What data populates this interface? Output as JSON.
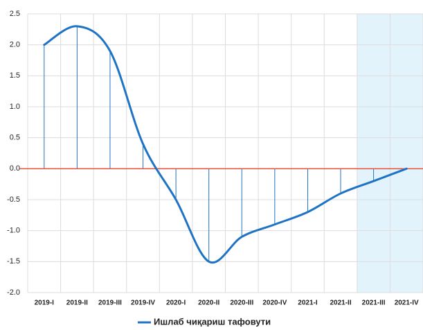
{
  "chart_data": {
    "type": "line",
    "categories": [
      "2019-I",
      "2019-II",
      "2019-III",
      "2019-IV",
      "2020-I",
      "2020-II",
      "2020-III",
      "2020-IV",
      "2021-I",
      "2021-II",
      "2021-III",
      "2021-IV"
    ],
    "series": [
      {
        "name": "Ишлаб чиқариш тафовути",
        "color": "#1f73c4",
        "values": [
          2.0,
          2.3,
          1.9,
          0.4,
          -0.5,
          -1.5,
          -1.1,
          -0.9,
          -0.7,
          -0.4,
          -0.2,
          0.0
        ]
      }
    ],
    "ylim": [
      -2,
      2.5
    ],
    "yticks": [
      {
        "value": -2,
        "label": "-2.0"
      },
      -1.5,
      {
        "value": -1,
        "label": "-1.0"
      },
      -0.5,
      {
        "value": 0,
        "label": "0.0"
      },
      0.5,
      {
        "value": 1,
        "label": "1.0"
      },
      1.5,
      {
        "value": 2,
        "label": "2.0"
      },
      2.5
    ],
    "grid": true,
    "smooth": true,
    "drop_lines": true,
    "zero_line_color": "#e8503a",
    "shaded_range": [
      10,
      11
    ],
    "shade_color": "#e3f3fc",
    "legend": "bottom"
  }
}
